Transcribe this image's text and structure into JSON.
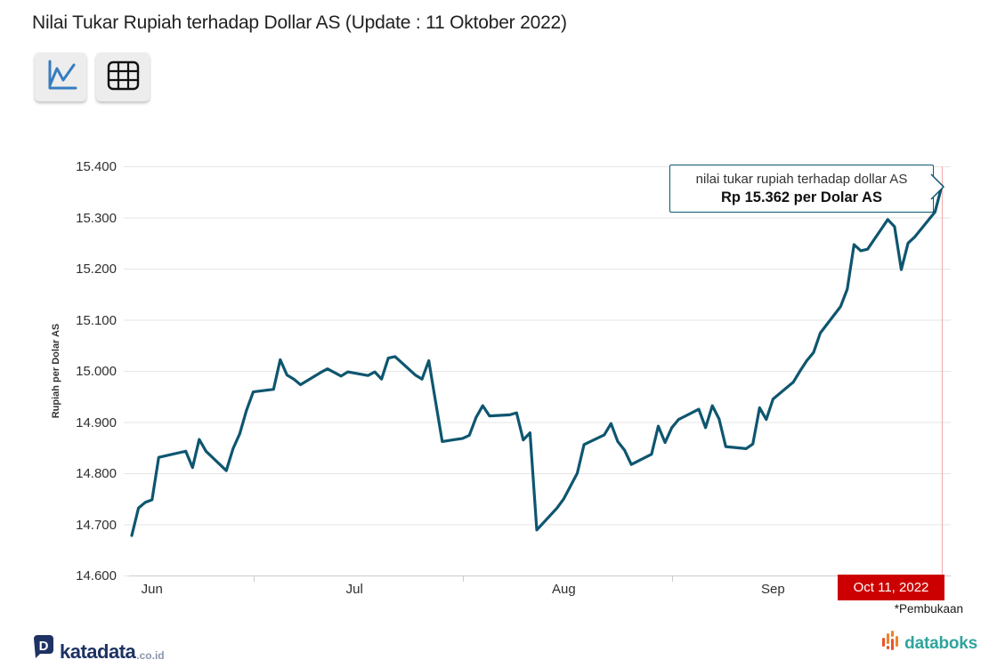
{
  "page_title": "Nilai Tukar Rupiah terhadap Dollar AS (Update : 11 Oktober 2022)",
  "toolbar": {
    "buttons": [
      {
        "icon": "line-chart-icon",
        "active": true
      },
      {
        "icon": "table-icon",
        "active": false
      }
    ]
  },
  "chart_data": {
    "type": "line",
    "title": "Nilai Tukar Rupiah terhadap Dollar AS",
    "ylabel": "Rupiah per Dolar AS",
    "xlabel": "",
    "ylim": [
      14600,
      15400
    ],
    "x_range": [
      "2022-06-13",
      "2022-10-11"
    ],
    "grid": true,
    "legend": false,
    "y_ticks": [
      {
        "value": 14600,
        "label": "14.600"
      },
      {
        "value": 14700,
        "label": "14.700"
      },
      {
        "value": 14800,
        "label": "14.800"
      },
      {
        "value": 14900,
        "label": "14.900"
      },
      {
        "value": 15000,
        "label": "15.000"
      },
      {
        "value": 15100,
        "label": "15.100"
      },
      {
        "value": 15200,
        "label": "15.200"
      },
      {
        "value": 15300,
        "label": "15.300"
      },
      {
        "value": 15400,
        "label": "15.400"
      }
    ],
    "x_ticks": {
      "boundaries": [
        "2022-07-01",
        "2022-08-01",
        "2022-09-01",
        "2022-10-01"
      ],
      "month_labels": [
        {
          "text": "Jun",
          "date": "2022-06-16"
        },
        {
          "text": "Jul",
          "date": "2022-07-16"
        },
        {
          "text": "Aug",
          "date": "2022-08-16"
        },
        {
          "text": "Sep",
          "date": "2022-09-16"
        }
      ]
    },
    "series": [
      {
        "name": "nilai tukar rupiah terhadap dollar AS",
        "color": "#0e566f",
        "points": [
          [
            "2022-06-13",
            14678
          ],
          [
            "2022-06-14",
            14732
          ],
          [
            "2022-06-15",
            14743
          ],
          [
            "2022-06-16",
            14748
          ],
          [
            "2022-06-17",
            14831
          ],
          [
            "2022-06-20",
            14840
          ],
          [
            "2022-06-21",
            14843
          ],
          [
            "2022-06-22",
            14811
          ],
          [
            "2022-06-23",
            14866
          ],
          [
            "2022-06-24",
            14843
          ],
          [
            "2022-06-27",
            14805
          ],
          [
            "2022-06-28",
            14848
          ],
          [
            "2022-06-29",
            14877
          ],
          [
            "2022-06-30",
            14923
          ],
          [
            "2022-07-01",
            14959
          ],
          [
            "2022-07-04",
            14964
          ],
          [
            "2022-07-05",
            15022
          ],
          [
            "2022-07-06",
            14992
          ],
          [
            "2022-07-07",
            14984
          ],
          [
            "2022-07-08",
            14973
          ],
          [
            "2022-07-11",
            14997
          ],
          [
            "2022-07-12",
            15004
          ],
          [
            "2022-07-13",
            14997
          ],
          [
            "2022-07-14",
            14990
          ],
          [
            "2022-07-15",
            14998
          ],
          [
            "2022-07-18",
            14991
          ],
          [
            "2022-07-19",
            14998
          ],
          [
            "2022-07-20",
            14984
          ],
          [
            "2022-07-21",
            15025
          ],
          [
            "2022-07-22",
            15028
          ],
          [
            "2022-07-25",
            14992
          ],
          [
            "2022-07-26",
            14984
          ],
          [
            "2022-07-27",
            15020
          ],
          [
            "2022-07-28",
            14940
          ],
          [
            "2022-07-29",
            14862
          ],
          [
            "2022-08-01",
            14868
          ],
          [
            "2022-08-02",
            14874
          ],
          [
            "2022-08-03",
            14909
          ],
          [
            "2022-08-04",
            14932
          ],
          [
            "2022-08-05",
            14912
          ],
          [
            "2022-08-08",
            14914
          ],
          [
            "2022-08-09",
            14918
          ],
          [
            "2022-08-10",
            14865
          ],
          [
            "2022-08-11",
            14879
          ],
          [
            "2022-08-12",
            14689
          ],
          [
            "2022-08-15",
            14732
          ],
          [
            "2022-08-16",
            14750
          ],
          [
            "2022-08-18",
            14800
          ],
          [
            "2022-08-19",
            14856
          ],
          [
            "2022-08-22",
            14875
          ],
          [
            "2022-08-23",
            14897
          ],
          [
            "2022-08-24",
            14862
          ],
          [
            "2022-08-25",
            14845
          ],
          [
            "2022-08-26",
            14817
          ],
          [
            "2022-08-29",
            14837
          ],
          [
            "2022-08-30",
            14892
          ],
          [
            "2022-08-31",
            14860
          ],
          [
            "2022-09-01",
            14889
          ],
          [
            "2022-09-02",
            14905
          ],
          [
            "2022-09-05",
            14925
          ],
          [
            "2022-09-06",
            14889
          ],
          [
            "2022-09-07",
            14932
          ],
          [
            "2022-09-08",
            14906
          ],
          [
            "2022-09-09",
            14852
          ],
          [
            "2022-09-12",
            14848
          ],
          [
            "2022-09-13",
            14857
          ],
          [
            "2022-09-14",
            14928
          ],
          [
            "2022-09-15",
            14905
          ],
          [
            "2022-09-16",
            14945
          ],
          [
            "2022-09-19",
            14978
          ],
          [
            "2022-09-20",
            15000
          ],
          [
            "2022-09-21",
            15020
          ],
          [
            "2022-09-22",
            15036
          ],
          [
            "2022-09-23",
            15074
          ],
          [
            "2022-09-26",
            15126
          ],
          [
            "2022-09-27",
            15160
          ],
          [
            "2022-09-28",
            15247
          ],
          [
            "2022-09-29",
            15235
          ],
          [
            "2022-09-30",
            15238
          ],
          [
            "2022-10-03",
            15296
          ],
          [
            "2022-10-04",
            15282
          ],
          [
            "2022-10-05",
            15198
          ],
          [
            "2022-10-06",
            15250
          ],
          [
            "2022-10-07",
            15262
          ],
          [
            "2022-10-10",
            15311
          ],
          [
            "2022-10-11",
            15362
          ]
        ]
      }
    ],
    "last_point": {
      "date": "2022-10-11",
      "value": 15362
    },
    "colors": {
      "grid": "#e6e6e6",
      "axis": "#cccccc",
      "crosshair": "#f2b1b1",
      "line": "#0e566f"
    }
  },
  "tooltip": {
    "line1": "nilai tukar rupiah terhadap dollar AS",
    "line2": "Rp 15.362 per Dolar AS"
  },
  "x_badge": {
    "label": "Oct 11, 2022",
    "bg": "#cc0000"
  },
  "footnote": "*Pembukaan",
  "footer": {
    "katadata": {
      "brand": "katadata",
      "suffix": ".co.id",
      "color": "#1e3264"
    },
    "databoks": {
      "brand": "databoks",
      "color": "#2fa49c",
      "bars_color": "#f08228"
    }
  }
}
